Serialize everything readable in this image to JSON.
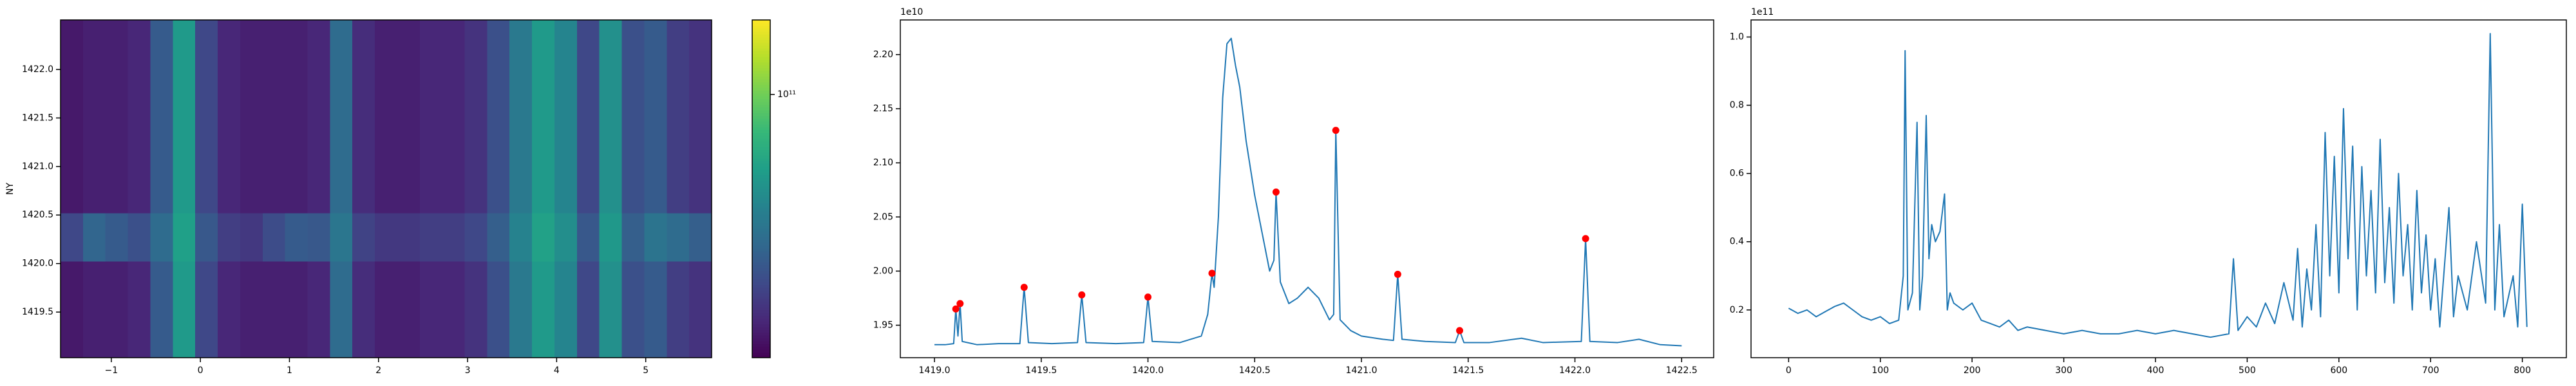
{
  "chart_data": [
    {
      "type": "heatmap",
      "ylabel": "NY",
      "log_color": true,
      "xlim": [
        -1.57,
        5.74
      ],
      "ylim": [
        1419.03,
        1422.51
      ],
      "xticks": [
        {
          "value": -1,
          "label": "−1"
        },
        0,
        1,
        2,
        3,
        4,
        5
      ],
      "yticks": [
        1419.5,
        {
          "value": 1420,
          "label": "1420.0"
        },
        1420.5,
        {
          "value": 1421,
          "label": "1421.0"
        },
        1421.5,
        {
          "value": 1422,
          "label": "1422.0"
        }
      ],
      "clim": [
        19000000000.0,
        160000000000.0
      ],
      "colorbar_ticks": [
        {
          "value": 100000000000.0,
          "label": "10¹¹"
        }
      ],
      "z": [
        [
          22000000000.0,
          23000000000.0,
          23000000000.0,
          24000000000.0,
          35000000000.0,
          60000000000.0,
          30000000000.0,
          24000000000.0,
          23000000000.0,
          23000000000.0,
          23000000000.0,
          24000000000.0,
          40000000000.0,
          25000000000.0,
          23000000000.0,
          23000000000.0,
          24000000000.0,
          24000000000.0,
          26000000000.0,
          32000000000.0,
          45000000000.0,
          60000000000.0,
          50000000000.0,
          30000000000.0,
          55000000000.0,
          32000000000.0,
          35000000000.0,
          28000000000.0,
          26000000000.0
        ],
        [
          22000000000.0,
          23000000000.0,
          23000000000.0,
          24000000000.0,
          35000000000.0,
          60000000000.0,
          30000000000.0,
          24000000000.0,
          23000000000.0,
          23000000000.0,
          23000000000.0,
          24000000000.0,
          40000000000.0,
          25000000000.0,
          23000000000.0,
          23000000000.0,
          24000000000.0,
          24000000000.0,
          26000000000.0,
          32000000000.0,
          45000000000.0,
          60000000000.0,
          50000000000.0,
          30000000000.0,
          55000000000.0,
          32000000000.0,
          35000000000.0,
          28000000000.0,
          26000000000.0
        ],
        [
          30000000000.0,
          38000000000.0,
          35000000000.0,
          32000000000.0,
          40000000000.0,
          63000000000.0,
          34000000000.0,
          28000000000.0,
          27000000000.0,
          31000000000.0,
          35000000000.0,
          34000000000.0,
          44000000000.0,
          29000000000.0,
          27000000000.0,
          27000000000.0,
          28000000000.0,
          28000000000.0,
          30000000000.0,
          36000000000.0,
          49000000000.0,
          64000000000.0,
          54000000000.0,
          34000000000.0,
          59000000000.0,
          36000000000.0,
          43000000000.0,
          40000000000.0,
          36000000000.0
        ],
        [
          22000000000.0,
          23000000000.0,
          23000000000.0,
          24000000000.0,
          35000000000.0,
          60000000000.0,
          30000000000.0,
          24000000000.0,
          23000000000.0,
          23000000000.0,
          23000000000.0,
          24000000000.0,
          40000000000.0,
          25000000000.0,
          23000000000.0,
          23000000000.0,
          24000000000.0,
          24000000000.0,
          26000000000.0,
          32000000000.0,
          45000000000.0,
          60000000000.0,
          50000000000.0,
          30000000000.0,
          55000000000.0,
          32000000000.0,
          35000000000.0,
          28000000000.0,
          26000000000.0
        ],
        [
          22000000000.0,
          23000000000.0,
          23000000000.0,
          24000000000.0,
          35000000000.0,
          60000000000.0,
          30000000000.0,
          24000000000.0,
          23000000000.0,
          23000000000.0,
          23000000000.0,
          24000000000.0,
          40000000000.0,
          25000000000.0,
          23000000000.0,
          23000000000.0,
          24000000000.0,
          24000000000.0,
          26000000000.0,
          32000000000.0,
          45000000000.0,
          60000000000.0,
          50000000000.0,
          30000000000.0,
          55000000000.0,
          32000000000.0,
          35000000000.0,
          28000000000.0,
          26000000000.0
        ],
        [
          22000000000.0,
          23000000000.0,
          23000000000.0,
          24000000000.0,
          35000000000.0,
          60000000000.0,
          30000000000.0,
          24000000000.0,
          23000000000.0,
          23000000000.0,
          23000000000.0,
          24000000000.0,
          40000000000.0,
          25000000000.0,
          23000000000.0,
          23000000000.0,
          24000000000.0,
          24000000000.0,
          26000000000.0,
          32000000000.0,
          45000000000.0,
          60000000000.0,
          50000000000.0,
          30000000000.0,
          55000000000.0,
          32000000000.0,
          35000000000.0,
          28000000000.0,
          26000000000.0
        ],
        [
          22000000000.0,
          23000000000.0,
          23000000000.0,
          24000000000.0,
          35000000000.0,
          60000000000.0,
          30000000000.0,
          24000000000.0,
          23000000000.0,
          23000000000.0,
          23000000000.0,
          24000000000.0,
          40000000000.0,
          25000000000.0,
          23000000000.0,
          23000000000.0,
          24000000000.0,
          24000000000.0,
          26000000000.0,
          32000000000.0,
          45000000000.0,
          60000000000.0,
          50000000000.0,
          30000000000.0,
          55000000000.0,
          32000000000.0,
          35000000000.0,
          28000000000.0,
          26000000000.0
        ]
      ]
    },
    {
      "type": "line",
      "y_offset_label": "1e10",
      "xlim": [
        1418.84,
        1422.65
      ],
      "ylim": [
        1.92,
        2.232
      ],
      "xticks": [
        {
          "value": 1419,
          "label": "1419.0"
        },
        1419.5,
        {
          "value": 1420,
          "label": "1420.0"
        },
        1420.5,
        {
          "value": 1421,
          "label": "1421.0"
        },
        1421.5,
        {
          "value": 1422,
          "label": "1422.0"
        },
        1422.5
      ],
      "yticks": [
        1.95,
        {
          "value": 2.0,
          "label": "2.00"
        },
        2.05,
        {
          "value": 2.1,
          "label": "2.10"
        },
        2.15,
        {
          "value": 2.2,
          "label": "2.20"
        }
      ],
      "series": [
        {
          "style": "line",
          "color": "#1f77b4",
          "x": [
            1419.0,
            1419.05,
            1419.09,
            1419.1,
            1419.11,
            1419.12,
            1419.13,
            1419.2,
            1419.3,
            1419.4,
            1419.42,
            1419.44,
            1419.55,
            1419.67,
            1419.69,
            1419.71,
            1419.85,
            1419.98,
            1420.0,
            1420.02,
            1420.15,
            1420.25,
            1420.28,
            1420.3,
            1420.31,
            1420.33,
            1420.35,
            1420.37,
            1420.39,
            1420.41,
            1420.43,
            1420.46,
            1420.5,
            1420.54,
            1420.57,
            1420.59,
            1420.6,
            1420.62,
            1420.66,
            1420.7,
            1420.75,
            1420.8,
            1420.85,
            1420.87,
            1420.88,
            1420.9,
            1420.95,
            1421.0,
            1421.1,
            1421.15,
            1421.17,
            1421.19,
            1421.3,
            1421.44,
            1421.46,
            1421.48,
            1421.6,
            1421.75,
            1421.85,
            1422.03,
            1422.05,
            1422.07,
            1422.2,
            1422.3,
            1422.4,
            1422.5
          ],
          "values": [
            1.932,
            1.932,
            1.933,
            1.965,
            1.94,
            1.97,
            1.935,
            1.932,
            1.933,
            1.933,
            1.985,
            1.934,
            1.933,
            1.934,
            1.978,
            1.934,
            1.933,
            1.934,
            1.976,
            1.935,
            1.934,
            1.94,
            1.96,
            1.998,
            1.985,
            2.05,
            2.16,
            2.21,
            2.215,
            2.19,
            2.17,
            2.12,
            2.07,
            2.03,
            2.0,
            2.01,
            2.073,
            1.99,
            1.97,
            1.975,
            1.985,
            1.975,
            1.955,
            1.96,
            2.13,
            1.955,
            1.945,
            1.94,
            1.937,
            1.936,
            1.997,
            1.937,
            1.935,
            1.934,
            1.945,
            1.934,
            1.934,
            1.938,
            1.934,
            1.935,
            2.03,
            1.935,
            1.934,
            1.937,
            1.932,
            1.931
          ]
        },
        {
          "style": "marker",
          "color": "#ff0000",
          "x": [
            1419.1,
            1419.12,
            1419.42,
            1419.69,
            1420.0,
            1420.3,
            1420.6,
            1420.88,
            1421.17,
            1421.46,
            1422.05
          ],
          "values": [
            1.965,
            1.97,
            1.985,
            1.978,
            1.976,
            1.998,
            2.073,
            2.13,
            1.997,
            1.945,
            2.03
          ]
        }
      ]
    },
    {
      "type": "line",
      "y_offset_label": "1e11",
      "xlim": [
        -41,
        848
      ],
      "ylim": [
        0.06,
        1.05
      ],
      "xticks": [
        0,
        100,
        200,
        300,
        400,
        500,
        600,
        700,
        800
      ],
      "yticks": [
        0.2,
        0.4,
        0.6,
        0.8,
        {
          "value": 1.0,
          "label": "1.0"
        }
      ],
      "series": [
        {
          "style": "line",
          "color": "#1f77b4",
          "x": [
            0,
            10,
            20,
            30,
            40,
            50,
            60,
            70,
            80,
            90,
            100,
            110,
            120,
            125,
            127,
            130,
            135,
            140,
            143,
            146,
            150,
            153,
            156,
            160,
            165,
            170,
            173,
            176,
            180,
            190,
            200,
            210,
            220,
            230,
            240,
            250,
            260,
            280,
            300,
            320,
            340,
            360,
            380,
            400,
            420,
            440,
            460,
            480,
            485,
            490,
            500,
            510,
            520,
            530,
            540,
            550,
            555,
            560,
            565,
            570,
            575,
            580,
            585,
            590,
            595,
            600,
            605,
            610,
            615,
            620,
            625,
            630,
            635,
            640,
            645,
            650,
            655,
            660,
            665,
            670,
            675,
            680,
            685,
            690,
            695,
            700,
            705,
            710,
            720,
            725,
            730,
            740,
            750,
            760,
            765,
            770,
            775,
            780,
            790,
            795,
            800,
            805
          ],
          "values": [
            0.205,
            0.19,
            0.2,
            0.18,
            0.195,
            0.21,
            0.22,
            0.2,
            0.18,
            0.17,
            0.18,
            0.16,
            0.17,
            0.3,
            0.96,
            0.2,
            0.25,
            0.75,
            0.2,
            0.3,
            0.77,
            0.35,
            0.45,
            0.4,
            0.43,
            0.54,
            0.2,
            0.25,
            0.22,
            0.2,
            0.22,
            0.17,
            0.16,
            0.15,
            0.17,
            0.14,
            0.15,
            0.14,
            0.13,
            0.14,
            0.13,
            0.13,
            0.14,
            0.13,
            0.14,
            0.13,
            0.12,
            0.13,
            0.35,
            0.14,
            0.18,
            0.15,
            0.22,
            0.16,
            0.28,
            0.17,
            0.38,
            0.15,
            0.32,
            0.2,
            0.45,
            0.18,
            0.72,
            0.3,
            0.65,
            0.25,
            0.79,
            0.35,
            0.68,
            0.2,
            0.62,
            0.3,
            0.55,
            0.25,
            0.7,
            0.28,
            0.5,
            0.22,
            0.6,
            0.3,
            0.45,
            0.2,
            0.55,
            0.25,
            0.42,
            0.2,
            0.35,
            0.15,
            0.5,
            0.18,
            0.3,
            0.2,
            0.4,
            0.22,
            1.01,
            0.2,
            0.45,
            0.18,
            0.3,
            0.15,
            0.51,
            0.15
          ]
        }
      ]
    }
  ]
}
